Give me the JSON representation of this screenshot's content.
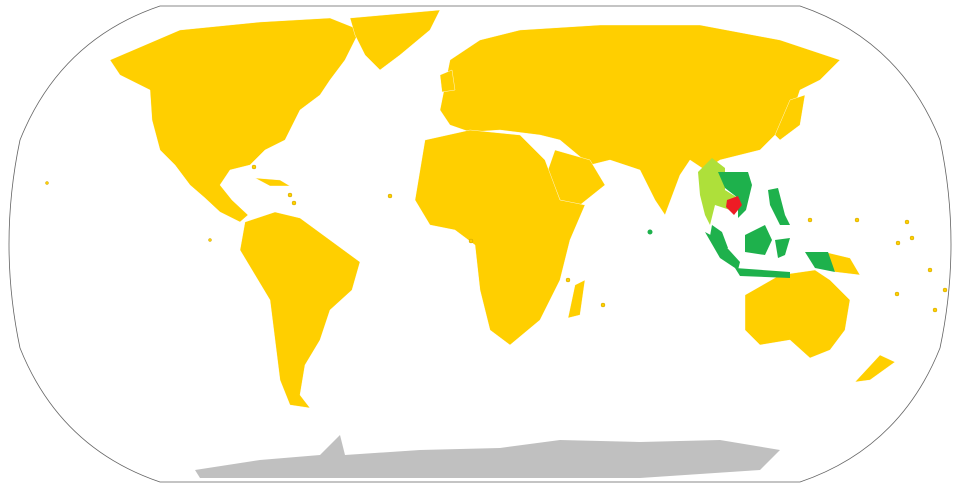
{
  "map": {
    "projection": "robinson",
    "colors": {
      "background": "#ffffff",
      "outline": "#646464",
      "other_land": "#ffcf00",
      "antarctica": "#c0c0c0",
      "highlight": "#ee1c25",
      "full_group": "#1eb14c",
      "partial_group": "#aee03a",
      "borders": "#ffffff"
    }
  }
}
